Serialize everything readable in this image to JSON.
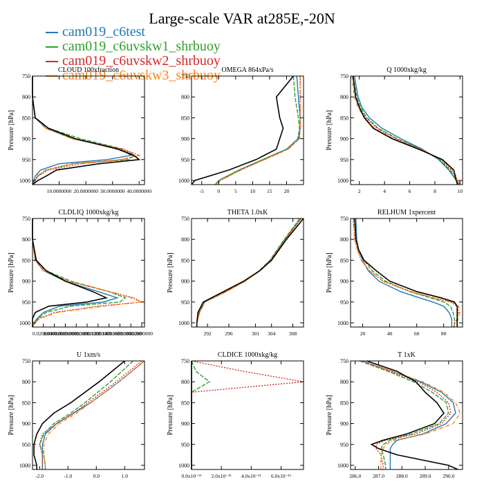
{
  "page": {
    "title": "Large-scale VAR at285E,-20N"
  },
  "legend": [
    {
      "label": "cam019_c6test",
      "color": "#1f77b4"
    },
    {
      "label": "cam019_c6uvskw1_shrbuoy",
      "color": "#2ca02c"
    },
    {
      "label": "cam019_c6uvskw2_shrbuoy",
      "color": "#d62728"
    },
    {
      "label": "cam019_c6uvskw3_shrbuoy",
      "color": "#ff7f0e"
    }
  ],
  "extra_series_color": "#000000",
  "chart_data": [
    {
      "type": "line",
      "title": "CLOUD  100xfraction",
      "ylabel": "Pressure [hPa]",
      "ylim": [
        1010,
        750
      ],
      "xlim": [
        0,
        42
      ],
      "xticks": [
        10,
        20,
        30,
        40
      ],
      "xticklabels": [
        "10.0000000",
        "20.0000000",
        "30.0000000",
        "40.0000000"
      ],
      "yticks": [
        750,
        800,
        850,
        900,
        950,
        1000
      ],
      "pressure": [
        750,
        800,
        850,
        875,
        900,
        925,
        940,
        950,
        960,
        975,
        990,
        1000,
        1010
      ],
      "series": [
        {
          "values": [
            0,
            0,
            1,
            5,
            15,
            33,
            37,
            28,
            10,
            3,
            1,
            0.5,
            0
          ]
        },
        {
          "values": [
            0,
            0,
            1,
            6,
            18,
            34,
            38,
            36,
            15,
            5,
            2,
            1,
            0
          ]
        },
        {
          "values": [
            0,
            0,
            1,
            5,
            16,
            34,
            40,
            34,
            18,
            6,
            2,
            1,
            0
          ]
        },
        {
          "values": [
            0,
            0,
            1,
            5,
            15,
            33,
            40,
            33,
            15,
            5,
            1.5,
            1,
            0
          ]
        },
        {
          "values": [
            0,
            0,
            1,
            6,
            16,
            32,
            38,
            40,
            25,
            9,
            5,
            2,
            0
          ]
        }
      ]
    },
    {
      "type": "line",
      "title": "OMEGA  864xPa/s",
      "ylabel": "",
      "ylim": [
        1010,
        750
      ],
      "xlim": [
        -8,
        25
      ],
      "xticks": [
        -5,
        0,
        5,
        10,
        15,
        20
      ],
      "xticklabels": [
        "-5",
        "0",
        "5",
        "10",
        "15",
        "20"
      ],
      "yticks": [
        750,
        800,
        850,
        900,
        950,
        1000
      ],
      "pressure": [
        750,
        800,
        850,
        875,
        900,
        925,
        950,
        975,
        1000,
        1010
      ],
      "series": [
        {
          "values": [
            23,
            23.5,
            24,
            24,
            23.5,
            20,
            13,
            6,
            0,
            -1
          ]
        },
        {
          "values": [
            22,
            22.5,
            23.5,
            23.8,
            23.3,
            20,
            13,
            6,
            0,
            -1
          ]
        },
        {
          "values": [
            24,
            24,
            24,
            24,
            23.8,
            20.5,
            13.5,
            6.5,
            0.5,
            -0.5
          ]
        },
        {
          "values": [
            24,
            24,
            24,
            24,
            23.8,
            20.5,
            13.5,
            6.5,
            0.5,
            -0.5
          ]
        },
        {
          "values": [
            22,
            17,
            18,
            19,
            18,
            17,
            11,
            3,
            -7,
            -8
          ]
        }
      ]
    },
    {
      "type": "line",
      "title": "Q  1000xkg/kg",
      "ylabel": "Pressure [hPa]",
      "ylim": [
        1010,
        750
      ],
      "xlim": [
        1.3,
        10.2
      ],
      "xticks": [
        2,
        4,
        6,
        8,
        10
      ],
      "xticklabels": [
        "2",
        "4",
        "6",
        "8",
        "10"
      ],
      "yticks": [
        750,
        800,
        850,
        900,
        950,
        1000
      ],
      "pressure": [
        750,
        800,
        825,
        850,
        875,
        900,
        925,
        950,
        975,
        1000,
        1010
      ],
      "series": [
        {
          "values": [
            1.6,
            1.9,
            2.2,
            2.8,
            3.8,
            5.3,
            7.0,
            8.3,
            9.1,
            9.7,
            9.9
          ]
        },
        {
          "values": [
            1.5,
            1.8,
            2.1,
            2.6,
            3.5,
            5.0,
            6.9,
            8.4,
            9.2,
            9.7,
            9.9
          ]
        },
        {
          "values": [
            1.5,
            1.7,
            2.0,
            2.5,
            3.4,
            4.9,
            6.9,
            8.5,
            9.3,
            9.8,
            10.0
          ]
        },
        {
          "values": [
            1.4,
            1.6,
            1.9,
            2.4,
            3.2,
            4.7,
            6.8,
            8.6,
            9.4,
            9.9,
            10.0
          ]
        },
        {
          "values": [
            1.5,
            1.7,
            2.0,
            2.4,
            3.1,
            4.6,
            6.7,
            8.6,
            9.5,
            9.7,
            9.8
          ]
        }
      ]
    },
    {
      "type": "line",
      "title": "CLDLIQ  1000xkg/kg",
      "ylabel": "Pressure [hPa]",
      "ylim": [
        1010,
        750
      ],
      "xlim": [
        0,
        0.205
      ],
      "xticks": [
        0.02,
        0.04,
        0.06,
        0.08,
        0.1,
        0.12,
        0.14,
        0.16,
        0.18,
        0.2
      ],
      "xticklabels": [
        "0.0200000",
        "0.0400000",
        "0.0600000",
        "0.0800000",
        "0.1000000",
        "0.1200000",
        "0.1400000",
        "0.1600000",
        "0.1800000",
        "0.2000000"
      ],
      "yticks": [
        750,
        800,
        850,
        900,
        950,
        1000
      ],
      "pressure": [
        750,
        800,
        850,
        875,
        900,
        925,
        940,
        950,
        960,
        975,
        990,
        1000,
        1010
      ],
      "series": [
        {
          "values": [
            0,
            0,
            0.005,
            0.02,
            0.06,
            0.12,
            0.155,
            0.13,
            0.05,
            0.02,
            0.008,
            0.003,
            0
          ],
          "color": "#1f77b4"
        },
        {
          "values": [
            0,
            0,
            0.006,
            0.025,
            0.07,
            0.14,
            0.17,
            0.16,
            0.07,
            0.025,
            0.01,
            0.004,
            0
          ],
          "color": "#2ca02c"
        },
        {
          "values": [
            0,
            0,
            0.005,
            0.022,
            0.065,
            0.14,
            0.185,
            0.2,
            0.12,
            0.04,
            0.012,
            0.004,
            0
          ],
          "color": "#d62728"
        },
        {
          "values": [
            0,
            0,
            0.005,
            0.021,
            0.065,
            0.14,
            0.18,
            0.2,
            0.13,
            0.045,
            0.013,
            0.004,
            0
          ],
          "color": "#ff7f0e"
        },
        {
          "values": [
            0,
            0,
            0.007,
            0.025,
            0.06,
            0.11,
            0.135,
            0.1,
            0.03,
            0.005,
            0,
            0,
            0
          ],
          "color": "#000000"
        }
      ]
    },
    {
      "type": "line",
      "title": "THETA  1.0xK",
      "ylabel": "Pressure [hPa]",
      "ylim": [
        1010,
        750
      ],
      "xlim": [
        289,
        310
      ],
      "xticks": [
        292,
        296,
        301,
        304,
        308
      ],
      "xticklabels": [
        "292",
        "296",
        "301",
        "304",
        "308"
      ],
      "yticks": [
        750,
        800,
        850,
        900,
        950,
        1000
      ],
      "pressure": [
        750,
        800,
        850,
        875,
        900,
        925,
        950,
        975,
        1000,
        1010
      ],
      "series": [
        {
          "values": [
            309.5,
            306.5,
            303.8,
            301.8,
            299.0,
            295.5,
            291.5,
            290.5,
            290.0,
            290.0
          ]
        },
        {
          "values": [
            309.3,
            306.4,
            303.7,
            301.7,
            298.9,
            295.3,
            291.4,
            290.4,
            290.0,
            290.0
          ]
        },
        {
          "values": [
            309.5,
            306.6,
            303.8,
            301.8,
            299.0,
            295.4,
            291.4,
            290.4,
            290.0,
            290.0
          ]
        },
        {
          "values": [
            309.6,
            306.7,
            303.9,
            301.9,
            299.1,
            295.5,
            291.5,
            290.5,
            290.0,
            290.0
          ]
        },
        {
          "values": [
            310.0,
            306.8,
            304.0,
            301.8,
            298.8,
            295.0,
            291.2,
            290.2,
            290.0,
            290.0
          ]
        }
      ]
    },
    {
      "type": "line",
      "title": "RELHUM  1xpercent",
      "ylabel": "Pressure [hPa]",
      "ylim": [
        1010,
        750
      ],
      "xlim": [
        11,
        94
      ],
      "xticks": [
        20,
        40,
        60,
        80
      ],
      "xticklabels": [
        "20",
        "40",
        "60",
        "80"
      ],
      "yticks": [
        750,
        800,
        850,
        900,
        950,
        1000
      ],
      "pressure": [
        750,
        800,
        825,
        850,
        875,
        900,
        925,
        940,
        950,
        960,
        975,
        990,
        1000,
        1010
      ],
      "series": [
        {
          "values": [
            15,
            15.5,
            17,
            20,
            24,
            32,
            48,
            62,
            72,
            80,
            84,
            86,
            86,
            86
          ]
        },
        {
          "values": [
            14,
            15,
            17,
            21,
            27,
            37,
            55,
            70,
            80,
            85,
            87,
            88,
            88,
            88
          ]
        },
        {
          "values": [
            13,
            14,
            16,
            19,
            25,
            35,
            55,
            72,
            85,
            90,
            91,
            90,
            88,
            88
          ]
        },
        {
          "values": [
            13,
            14,
            16,
            19,
            25,
            35,
            56,
            73,
            86,
            91,
            92,
            91,
            89,
            87
          ]
        },
        {
          "values": [
            14,
            15,
            17,
            21,
            30,
            40,
            60,
            78,
            88,
            90,
            90,
            90,
            90,
            90
          ]
        }
      ]
    },
    {
      "type": "line",
      "title": "U  1xm/s",
      "ylabel": "Pressure [hPa]",
      "ylim": [
        1010,
        750
      ],
      "xlim": [
        -2.25,
        1.7
      ],
      "xticks": [
        -2.0,
        -1.0,
        0.0,
        1.0
      ],
      "xticklabels": [
        "-2.0",
        "-1.0",
        "0.0",
        "1.0"
      ],
      "yticks": [
        750,
        800,
        850,
        900,
        950,
        1000
      ],
      "pressure": [
        750,
        800,
        850,
        875,
        900,
        925,
        950,
        975,
        1000,
        1010
      ],
      "series": [
        {
          "values": [
            1.7,
            0.8,
            -0.2,
            -0.8,
            -1.4,
            -1.8,
            -1.9,
            -1.9,
            -1.9,
            -1.9
          ]
        },
        {
          "values": [
            1.3,
            0.5,
            -0.4,
            -0.9,
            -1.5,
            -1.85,
            -2.0,
            -1.85,
            -1.8,
            -1.8
          ]
        },
        {
          "values": [
            1.6,
            0.7,
            -0.3,
            -0.8,
            -1.4,
            -1.9,
            -2.0,
            -1.9,
            -1.9,
            -1.9
          ]
        },
        {
          "values": [
            1.7,
            0.8,
            -0.2,
            -0.7,
            -1.3,
            -1.7,
            -1.85,
            -1.85,
            -1.8,
            -1.8
          ]
        },
        {
          "values": [
            1.0,
            0.1,
            -0.9,
            -1.5,
            -1.9,
            -2.1,
            -2.2,
            -2.2,
            -2.1,
            -2.1
          ]
        }
      ]
    },
    {
      "type": "line",
      "title": "CLDICE  1000xkg/kg",
      "ylabel": "Pressure [hPa]",
      "ylim": [
        1010,
        750
      ],
      "xlim": [
        0,
        7.5e-11
      ],
      "xticks": [
        0,
        2e-11,
        4e-11,
        6e-11
      ],
      "xticklabels": [
        "0.0x10⁻¹¹",
        "2.0x10⁻¹¹",
        "4.0x10⁻¹¹",
        "6.0x10⁻¹¹"
      ],
      "yticks": [
        750,
        800,
        850,
        900,
        950,
        1000
      ],
      "pressure": [
        750,
        775,
        800,
        825,
        850,
        900,
        950,
        1000,
        1010
      ],
      "series": [
        {
          "values": [
            0,
            0,
            0,
            0,
            0,
            0,
            0,
            0,
            0
          ]
        },
        {
          "values": [
            0,
            3e-12,
            1.2e-11,
            0,
            0,
            0,
            0,
            0,
            0
          ]
        },
        {
          "values": [
            0,
            3.5e-11,
            7.5e-11,
            0,
            0,
            0,
            0,
            0,
            0
          ]
        },
        {
          "values": [
            0,
            0,
            0,
            0,
            0,
            0,
            0,
            0,
            0
          ]
        },
        {
          "values": [
            0,
            0,
            0,
            0,
            0,
            0,
            0,
            0,
            0
          ]
        }
      ]
    },
    {
      "type": "line",
      "title": "T  1xK",
      "ylabel": "Pressure [hPa]",
      "ylim": [
        1010,
        750
      ],
      "xlim": [
        285.8,
        290.6
      ],
      "xticks": [
        286.0,
        287.0,
        288.0,
        289.0,
        290.0
      ],
      "xticklabels": [
        "286.0",
        "287.0",
        "288.0",
        "289.0",
        "290.0"
      ],
      "yticks": [
        750,
        800,
        850,
        900,
        950,
        1000
      ],
      "pressure": [
        750,
        775,
        800,
        825,
        850,
        875,
        900,
        925,
        940,
        950,
        960,
        975,
        1000,
        1010
      ],
      "series": [
        {
          "values": [
            286.3,
            287.6,
            288.8,
            289.7,
            290.2,
            290.3,
            289.9,
            288.9,
            287.8,
            287.6,
            287.5,
            287.5,
            287.5,
            287.5
          ]
        },
        {
          "values": [
            286.2,
            287.4,
            288.5,
            289.3,
            289.9,
            290.0,
            289.6,
            288.4,
            287.5,
            287.2,
            287.1,
            287.2,
            287.3,
            287.3
          ]
        },
        {
          "values": [
            286.2,
            287.5,
            288.7,
            289.5,
            290.0,
            290.1,
            289.7,
            288.6,
            287.3,
            286.9,
            286.9,
            287.1,
            287.2,
            287.2
          ]
        },
        {
          "values": [
            286.3,
            287.6,
            288.9,
            289.8,
            290.3,
            290.5,
            290.2,
            289.0,
            287.7,
            287.3,
            287.2,
            287.1,
            287.1,
            287.1
          ]
        },
        {
          "values": [
            286.5,
            287.8,
            288.6,
            289.0,
            289.5,
            289.8,
            289.4,
            288.2,
            287.2,
            286.7,
            287.0,
            287.8,
            290.0,
            290.4
          ]
        }
      ]
    }
  ]
}
